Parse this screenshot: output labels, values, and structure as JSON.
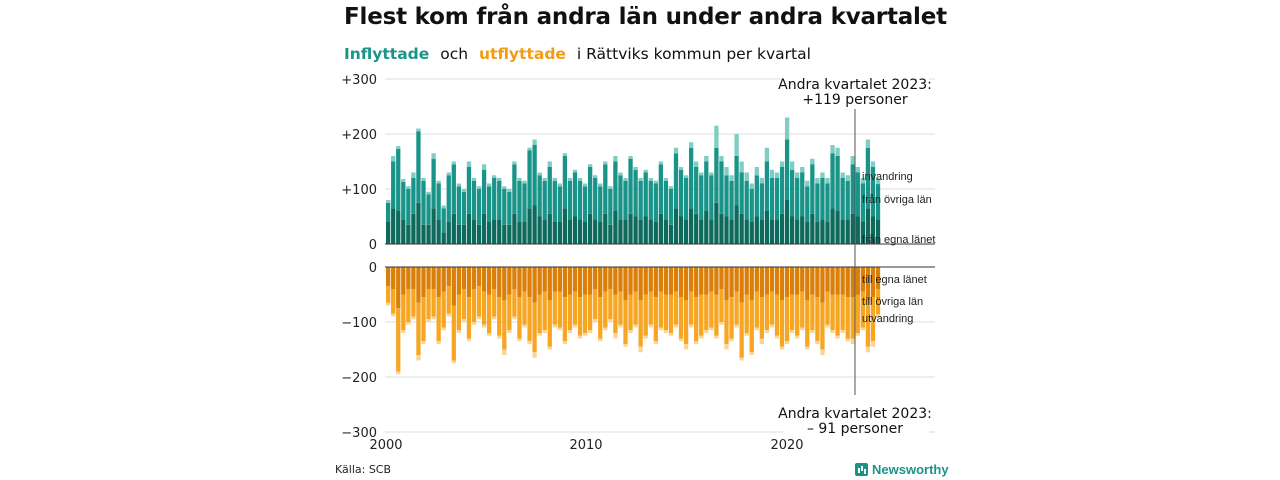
{
  "title": "Flest kom från andra län under andra kvartalet",
  "subtitle": {
    "in_word": "Inflyttade",
    "och": "och",
    "out_word": "utflyttade",
    "rest": "i Rättviks  kommun  per  kvartal"
  },
  "source": "Källa: SCB",
  "brand": "Newsworthy",
  "annotations": {
    "top": [
      "Andra kvartalet 2023:",
      "+119 personer"
    ],
    "bottom": [
      "Andra kvartalet 2023:",
      "– 91 personer"
    ]
  },
  "colors": {
    "in_egna": "#0e6a5c",
    "in_ovriga": "#1a9489",
    "in_invandring": "#7fcdc3",
    "out_egna": "#d97f0a",
    "out_ovriga": "#f6a623",
    "out_utvandring": "#fbd596"
  },
  "chart_data": {
    "type": "bar",
    "stacked": true,
    "x_axis": {
      "ticks": [
        "2000",
        "2010",
        "2020"
      ],
      "range": [
        "2000 Q1",
        "2023 Q2"
      ]
    },
    "y_axis_top": {
      "ticks": [
        "+300",
        "+200",
        "+100",
        "0"
      ],
      "ylim": [
        0,
        300
      ]
    },
    "y_axis_bottom": {
      "ticks": [
        "0",
        "−100",
        "−200",
        "−300"
      ],
      "ylim": [
        -300,
        0
      ]
    },
    "series_labels_in": [
      "invandring",
      "från övriga län",
      "från egna länet"
    ],
    "series_labels_out": [
      "till egna länet",
      "till övriga län",
      "utvandring"
    ],
    "in_totals": [
      80,
      160,
      178,
      118,
      105,
      130,
      210,
      120,
      95,
      165,
      115,
      70,
      130,
      150,
      110,
      100,
      150,
      120,
      105,
      145,
      110,
      125,
      120,
      105,
      100,
      150,
      120,
      115,
      175,
      190,
      130,
      120,
      150,
      120,
      110,
      165,
      120,
      135,
      120,
      110,
      145,
      125,
      110,
      150,
      105,
      160,
      130,
      120,
      160,
      140,
      120,
      135,
      120,
      115,
      150,
      120,
      105,
      175,
      140,
      125,
      185,
      150,
      130,
      160,
      130,
      215,
      160,
      140,
      125,
      200,
      150,
      130,
      110,
      140,
      120,
      175,
      135,
      130,
      150,
      230,
      150,
      130,
      140,
      115,
      155,
      120,
      130,
      120,
      180,
      175,
      130,
      125,
      160,
      140,
      120,
      190,
      150,
      119
    ],
    "in_egna": [
      40,
      65,
      60,
      45,
      35,
      55,
      75,
      35,
      35,
      65,
      45,
      20,
      40,
      55,
      35,
      35,
      55,
      45,
      35,
      55,
      40,
      45,
      45,
      35,
      35,
      55,
      40,
      40,
      65,
      70,
      50,
      45,
      55,
      40,
      40,
      65,
      45,
      50,
      45,
      40,
      55,
      45,
      40,
      55,
      35,
      60,
      45,
      45,
      55,
      50,
      45,
      50,
      45,
      40,
      55,
      45,
      35,
      65,
      50,
      45,
      65,
      55,
      45,
      60,
      45,
      75,
      55,
      50,
      45,
      70,
      55,
      45,
      40,
      50,
      45,
      60,
      45,
      45,
      55,
      80,
      50,
      45,
      50,
      40,
      55,
      40,
      45,
      40,
      65,
      60,
      45,
      45,
      55,
      50,
      40,
      65,
      50,
      45
    ],
    "in_invandring": [
      5,
      10,
      5,
      5,
      5,
      10,
      5,
      5,
      5,
      10,
      5,
      5,
      5,
      5,
      5,
      5,
      10,
      5,
      5,
      10,
      5,
      5,
      5,
      5,
      5,
      5,
      5,
      5,
      5,
      10,
      5,
      5,
      10,
      5,
      5,
      5,
      5,
      5,
      5,
      5,
      5,
      5,
      5,
      5,
      5,
      10,
      5,
      5,
      5,
      5,
      5,
      5,
      5,
      5,
      5,
      5,
      5,
      10,
      5,
      5,
      10,
      10,
      5,
      10,
      5,
      40,
      10,
      15,
      10,
      40,
      20,
      15,
      10,
      15,
      10,
      25,
      15,
      10,
      10,
      40,
      15,
      10,
      10,
      10,
      10,
      10,
      10,
      10,
      15,
      15,
      10,
      10,
      15,
      10,
      10,
      15,
      10,
      10
    ],
    "out_totals": [
      70,
      90,
      195,
      120,
      105,
      95,
      170,
      140,
      100,
      95,
      140,
      115,
      90,
      175,
      120,
      100,
      135,
      105,
      95,
      110,
      125,
      95,
      130,
      160,
      120,
      95,
      135,
      110,
      140,
      165,
      125,
      120,
      150,
      110,
      115,
      140,
      120,
      110,
      130,
      125,
      120,
      100,
      135,
      115,
      100,
      130,
      110,
      145,
      120,
      110,
      155,
      130,
      110,
      140,
      115,
      120,
      125,
      110,
      135,
      150,
      110,
      140,
      130,
      120,
      115,
      130,
      105,
      150,
      135,
      110,
      170,
      125,
      160,
      115,
      140,
      120,
      110,
      130,
      150,
      140,
      120,
      130,
      115,
      150,
      120,
      140,
      160,
      110,
      120,
      130,
      120,
      135,
      140,
      125,
      115,
      155,
      145,
      91
    ],
    "out_egna": [
      35,
      40,
      75,
      50,
      40,
      40,
      65,
      55,
      40,
      40,
      55,
      45,
      35,
      70,
      50,
      40,
      55,
      40,
      35,
      45,
      50,
      40,
      55,
      60,
      50,
      40,
      55,
      45,
      55,
      65,
      50,
      45,
      60,
      45,
      45,
      55,
      50,
      45,
      55,
      50,
      50,
      40,
      55,
      45,
      40,
      50,
      45,
      60,
      50,
      45,
      60,
      50,
      45,
      55,
      45,
      50,
      50,
      45,
      55,
      60,
      45,
      55,
      50,
      50,
      45,
      50,
      40,
      60,
      55,
      45,
      65,
      50,
      60,
      45,
      55,
      50,
      45,
      50,
      60,
      55,
      50,
      50,
      45,
      60,
      50,
      55,
      65,
      45,
      50,
      50,
      50,
      55,
      55,
      50,
      45,
      60,
      55,
      40
    ],
    "out_utvandring": [
      5,
      5,
      5,
      5,
      5,
      5,
      10,
      5,
      5,
      5,
      5,
      5,
      5,
      5,
      5,
      5,
      5,
      5,
      5,
      5,
      5,
      5,
      5,
      10,
      5,
      5,
      5,
      5,
      5,
      10,
      5,
      5,
      5,
      5,
      5,
      5,
      5,
      5,
      5,
      5,
      5,
      5,
      5,
      5,
      5,
      10,
      5,
      5,
      5,
      5,
      10,
      5,
      5,
      5,
      5,
      5,
      5,
      5,
      5,
      10,
      5,
      5,
      5,
      5,
      5,
      5,
      5,
      10,
      5,
      5,
      5,
      5,
      5,
      5,
      10,
      5,
      5,
      5,
      5,
      5,
      5,
      5,
      5,
      5,
      5,
      5,
      10,
      5,
      5,
      5,
      5,
      5,
      10,
      5,
      5,
      10,
      10,
      5
    ]
  }
}
